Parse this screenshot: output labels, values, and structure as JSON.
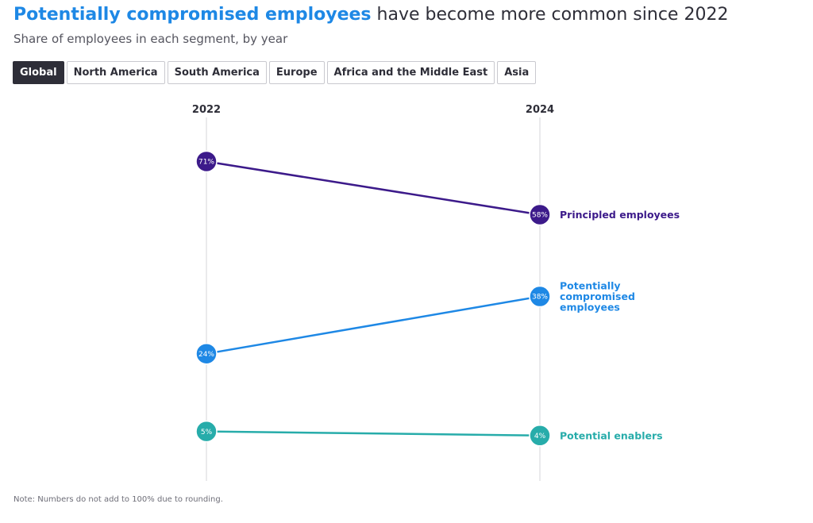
{
  "title": {
    "highlight": "Potentially compromised employees",
    "rest": " have become more common since 2022"
  },
  "subtitle": "Share of employees in each segment, by year",
  "tabs": [
    {
      "label": "Global",
      "active": true
    },
    {
      "label": "North America",
      "active": false
    },
    {
      "label": "South America",
      "active": false
    },
    {
      "label": "Europe",
      "active": false
    },
    {
      "label": "Africa and the Middle East",
      "active": false
    },
    {
      "label": "Asia",
      "active": false
    }
  ],
  "note": "Note: Numbers do not add to 100% due to rounding.",
  "chart_data": {
    "type": "line",
    "title": "Potentially compromised employees have become more common since 2022",
    "subtitle": "Share of employees in each segment, by year",
    "x": [
      "2022",
      "2024"
    ],
    "ylim": [
      0,
      80
    ],
    "unit": "%",
    "grid": false,
    "legend": "inline-right",
    "series": [
      {
        "name": "Principled employees",
        "label_lines": [
          "Principled employees"
        ],
        "values": [
          71,
          58
        ],
        "color": "#3c1a8a"
      },
      {
        "name": "Potentially compromised employees",
        "label_lines": [
          "Potentially",
          "compromised",
          "employees"
        ],
        "values": [
          24,
          38
        ],
        "color": "#1e88e5"
      },
      {
        "name": "Potential enablers",
        "label_lines": [
          "Potential enablers"
        ],
        "values": [
          5,
          4
        ],
        "color": "#27acaa"
      }
    ]
  }
}
